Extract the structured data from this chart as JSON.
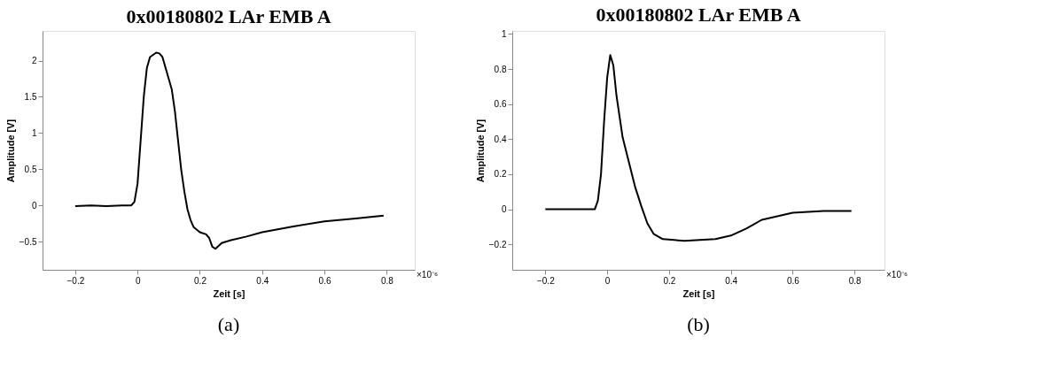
{
  "chart_data": [
    {
      "type": "line",
      "title": "0x00180802 LAr EMB A",
      "xlabel": "Zeit [s]",
      "ylabel": "Amplitude [V]",
      "annotations": [
        "×10⁻⁶",
        "(a)"
      ],
      "x": [
        -0.2,
        -0.15,
        -0.1,
        -0.05,
        -0.02,
        -0.01,
        0,
        0.01,
        0.02,
        0.03,
        0.04,
        0.06,
        0.07,
        0.08,
        0.09,
        0.1,
        0.11,
        0.12,
        0.13,
        0.14,
        0.15,
        0.16,
        0.17,
        0.18,
        0.2,
        0.22,
        0.23,
        0.24,
        0.25,
        0.27,
        0.3,
        0.35,
        0.4,
        0.5,
        0.6,
        0.7,
        0.79
      ],
      "series": [
        {
          "color": "#000000",
          "values": [
            -0.01,
            0.0,
            -0.01,
            0.0,
            0.0,
            0.05,
            0.3,
            0.9,
            1.5,
            1.9,
            2.05,
            2.11,
            2.1,
            2.05,
            1.9,
            1.75,
            1.6,
            1.3,
            0.9,
            0.5,
            0.2,
            -0.05,
            -0.2,
            -0.3,
            -0.37,
            -0.4,
            -0.45,
            -0.57,
            -0.6,
            -0.52,
            -0.48,
            -0.43,
            -0.37,
            -0.29,
            -0.22,
            -0.18,
            -0.14
          ]
        }
      ],
      "xlim": [
        -0.305,
        0.89
      ],
      "xticks": [
        -0.2,
        0,
        0.2,
        0.4,
        0.6,
        0.8
      ],
      "ylim": [
        -0.89,
        2.41
      ],
      "yticks": [
        -0.5,
        0,
        0.5,
        1,
        1.5,
        2
      ],
      "grid": false,
      "line_style": "solid",
      "marker": "none"
    },
    {
      "type": "line",
      "title": "0x00180802 LAr EMB A",
      "xlabel": "Zeit [s]",
      "ylabel": "Amplitude [V]",
      "annotations": [
        "×10⁻⁶",
        "(b)"
      ],
      "x": [
        -0.2,
        -0.1,
        -0.04,
        -0.03,
        -0.02,
        -0.01,
        0,
        0.01,
        0.02,
        0.03,
        0.05,
        0.07,
        0.09,
        0.11,
        0.13,
        0.15,
        0.18,
        0.25,
        0.35,
        0.4,
        0.45,
        0.5,
        0.55,
        0.6,
        0.7,
        0.79
      ],
      "series": [
        {
          "color": "#000000",
          "values": [
            0,
            0,
            0,
            0.05,
            0.2,
            0.5,
            0.75,
            0.88,
            0.82,
            0.65,
            0.41,
            0.27,
            0.13,
            0.02,
            -0.08,
            -0.14,
            -0.17,
            -0.18,
            -0.17,
            -0.15,
            -0.11,
            -0.06,
            -0.04,
            -0.02,
            -0.01,
            -0.01
          ]
        }
      ],
      "xlim": [
        -0.307,
        0.897
      ],
      "xticks": [
        -0.2,
        0,
        0.2,
        0.4,
        0.6,
        0.8
      ],
      "ylim": [
        -0.345,
        1.017
      ],
      "yticks": [
        -0.2,
        0,
        0.2,
        0.4,
        0.6,
        0.8,
        1
      ],
      "grid": false,
      "line_style": "solid",
      "marker": "none"
    }
  ]
}
